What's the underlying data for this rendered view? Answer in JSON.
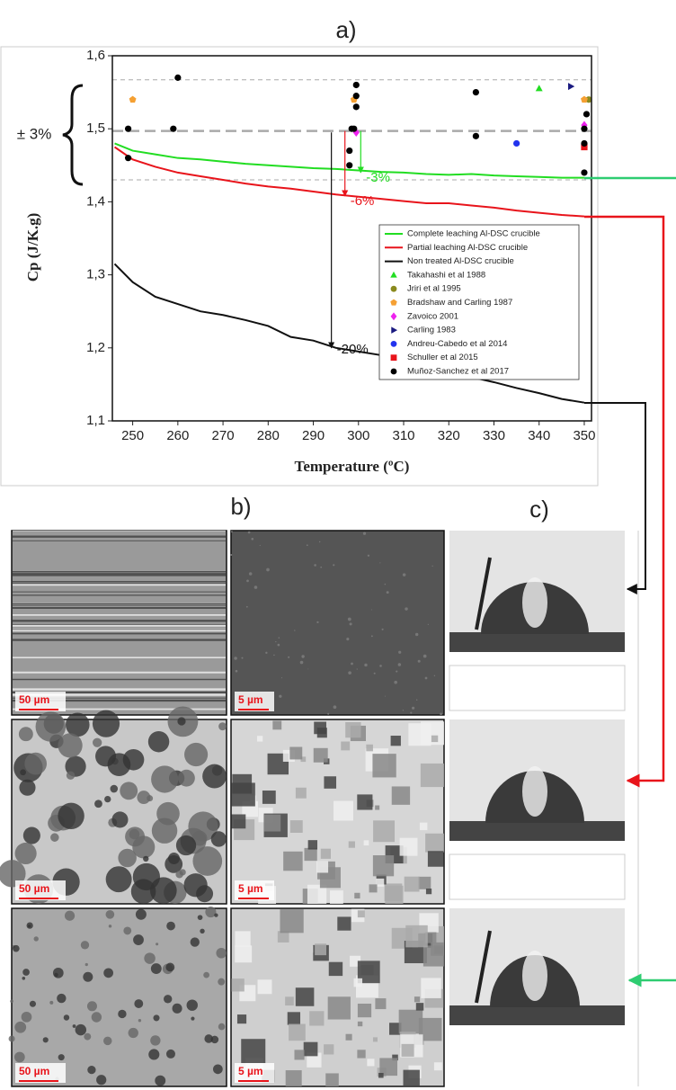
{
  "figure": {
    "panel_labels": [
      "a)",
      "b)",
      "c)"
    ],
    "scale_bars": [
      "50 µm",
      "5 µm",
      "50 µm",
      "5 µm",
      "50 µm",
      "5 µm"
    ]
  },
  "chart_data": {
    "type": "line",
    "x_label": "Temperature (ºC)",
    "y_label": "Cp (J/K.g)",
    "band_label": "± 3%",
    "xlim": [
      245.5,
      351.6
    ],
    "ylim": [
      1.1,
      1.6
    ],
    "xticks": [
      250,
      260,
      270,
      280,
      290,
      300,
      310,
      320,
      330,
      340,
      350
    ],
    "yticks": [
      {
        "value": 1.1,
        "label": "1,1"
      },
      {
        "value": 1.2,
        "label": "1,2"
      },
      {
        "value": 1.3,
        "label": "1,3"
      },
      {
        "value": 1.4,
        "label": "1,4"
      },
      {
        "value": 1.5,
        "label": "1,5"
      },
      {
        "value": 1.6,
        "label": "1,6"
      }
    ],
    "hlines": [
      1.567,
      1.497,
      1.43
    ],
    "x": [
      246,
      250,
      255,
      260,
      265,
      270,
      275,
      280,
      285,
      290,
      295,
      300,
      305,
      310,
      315,
      320,
      325,
      330,
      335,
      340,
      345,
      350
    ],
    "series": [
      {
        "name": "Complete leaching Al-DSC crucible",
        "type": "line",
        "color": "#22dd22",
        "values": [
          1.48,
          1.47,
          1.465,
          1.46,
          1.458,
          1.455,
          1.452,
          1.45,
          1.448,
          1.446,
          1.445,
          1.443,
          1.441,
          1.44,
          1.438,
          1.437,
          1.438,
          1.436,
          1.435,
          1.434,
          1.433,
          1.433
        ]
      },
      {
        "name": "Partial leaching Al-DSC crucible",
        "type": "line",
        "color": "#e8141b",
        "values": [
          1.475,
          1.458,
          1.448,
          1.44,
          1.435,
          1.43,
          1.425,
          1.421,
          1.418,
          1.414,
          1.41,
          1.407,
          1.404,
          1.401,
          1.398,
          1.398,
          1.395,
          1.392,
          1.388,
          1.385,
          1.382,
          1.38
        ]
      },
      {
        "name": "Non treated Al-DSC crucible",
        "type": "line",
        "color": "#111111",
        "values": [
          1.315,
          1.29,
          1.27,
          1.26,
          1.25,
          1.245,
          1.238,
          1.23,
          1.215,
          1.21,
          1.2,
          1.195,
          1.19,
          1.183,
          1.175,
          1.168,
          1.16,
          1.153,
          1.145,
          1.138,
          1.13,
          1.125
        ]
      },
      {
        "name": "Takahashi et al 1988",
        "type": "scatter",
        "marker": "triangle",
        "color": "#22dd22",
        "x": [
          340
        ],
        "values": [
          1.555
        ]
      },
      {
        "name": "Jriri et al 1995",
        "type": "scatter",
        "marker": "circle",
        "color": "#8a8a1e",
        "x": [
          351
        ],
        "values": [
          1.54
        ]
      },
      {
        "name": "Bradshaw and Carling 1987",
        "type": "scatter",
        "marker": "pentagon",
        "color": "#f5a033",
        "x": [
          250,
          299,
          350
        ],
        "values": [
          1.54,
          1.54,
          1.54
        ]
      },
      {
        "name": "Zavoico 2001",
        "type": "scatter",
        "marker": "diamond",
        "color": "#ee22ee",
        "x": [
          299.5,
          350
        ],
        "values": [
          1.495,
          1.505
        ]
      },
      {
        "name": "Carling 1983",
        "type": "scatter",
        "marker": "triangle-right",
        "color": "#1a1a80",
        "x": [
          347
        ],
        "values": [
          1.558
        ]
      },
      {
        "name": "Andreu-Cabedo et al 2014",
        "type": "scatter",
        "marker": "circle",
        "color": "#2233ee",
        "x": [
          335
        ],
        "values": [
          1.48
        ]
      },
      {
        "name": "Schuller et al 2015",
        "type": "scatter",
        "marker": "square",
        "color": "#e8141b",
        "x": [
          350
        ],
        "values": [
          1.475
        ]
      },
      {
        "name": "Muñoz-Sanchez et al 2017",
        "type": "scatter",
        "marker": "circle",
        "color": "#000000",
        "x": [
          249,
          249,
          259,
          260,
          298,
          298,
          298.5,
          299,
          299.5,
          299.5,
          299.5,
          326,
          326,
          350,
          350,
          350,
          350.5
        ],
        "values": [
          1.5,
          1.46,
          1.5,
          1.57,
          1.45,
          1.47,
          1.5,
          1.5,
          1.53,
          1.545,
          1.56,
          1.55,
          1.49,
          1.44,
          1.48,
          1.5,
          1.52
        ]
      }
    ],
    "annotations": [
      {
        "text": "-3%",
        "color": "#22dd22",
        "x": 300.5,
        "y_from": 1.497,
        "y_to": 1.44
      },
      {
        "text": "-6%",
        "color": "#e8141b",
        "x": 297,
        "y_from": 1.497,
        "y_to": 1.408
      },
      {
        "text": "-20%",
        "color": "#111111",
        "x": 294,
        "y_from": 1.495,
        "y_to": 1.2
      }
    ]
  }
}
